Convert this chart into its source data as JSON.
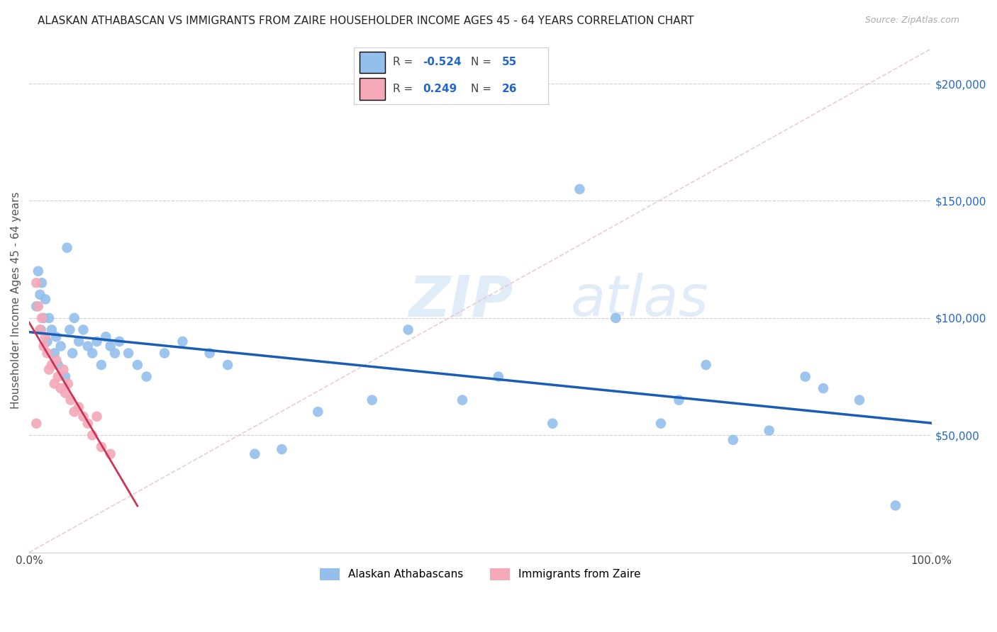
{
  "title": "ALASKAN ATHABASCAN VS IMMIGRANTS FROM ZAIRE HOUSEHOLDER INCOME AGES 45 - 64 YEARS CORRELATION CHART",
  "source": "Source: ZipAtlas.com",
  "ylabel": "Householder Income Ages 45 - 64 years",
  "xlim": [
    0,
    1.0
  ],
  "ylim": [
    0,
    215000
  ],
  "yticks_right": [
    50000,
    100000,
    150000,
    200000
  ],
  "ytick_labels_right": [
    "$50,000",
    "$100,000",
    "$150,000",
    "$200,000"
  ],
  "blue_color": "#92bfec",
  "pink_color": "#f4a8b8",
  "blue_line_color": "#1a5db5",
  "pink_line_color": "#cc3355",
  "diag_line_color": "#e8c0c8",
  "legend_blue_R": "-0.524",
  "legend_blue_N": "55",
  "legend_pink_R": "0.249",
  "legend_pink_N": "26",
  "legend_label_blue": "Alaskan Athabascans",
  "legend_label_pink": "Immigrants from Zaire",
  "blue_x": [
    0.008,
    0.01,
    0.012,
    0.013,
    0.014,
    0.016,
    0.018,
    0.02,
    0.022,
    0.025,
    0.028,
    0.03,
    0.032,
    0.035,
    0.04,
    0.042,
    0.045,
    0.048,
    0.05,
    0.055,
    0.06,
    0.065,
    0.07,
    0.075,
    0.08,
    0.085,
    0.09,
    0.095,
    0.1,
    0.11,
    0.12,
    0.13,
    0.15,
    0.17,
    0.2,
    0.22,
    0.25,
    0.28,
    0.32,
    0.38,
    0.42,
    0.48,
    0.52,
    0.58,
    0.61,
    0.65,
    0.7,
    0.72,
    0.75,
    0.78,
    0.82,
    0.86,
    0.88,
    0.92,
    0.96
  ],
  "blue_y": [
    105000,
    120000,
    110000,
    95000,
    115000,
    100000,
    108000,
    90000,
    100000,
    95000,
    85000,
    92000,
    80000,
    88000,
    75000,
    130000,
    95000,
    85000,
    100000,
    90000,
    95000,
    88000,
    85000,
    90000,
    80000,
    92000,
    88000,
    85000,
    90000,
    85000,
    80000,
    75000,
    85000,
    90000,
    85000,
    80000,
    42000,
    44000,
    60000,
    65000,
    95000,
    65000,
    75000,
    55000,
    155000,
    100000,
    55000,
    65000,
    80000,
    48000,
    52000,
    75000,
    70000,
    65000,
    20000
  ],
  "pink_x": [
    0.008,
    0.01,
    0.012,
    0.014,
    0.016,
    0.018,
    0.02,
    0.022,
    0.025,
    0.028,
    0.03,
    0.032,
    0.035,
    0.038,
    0.04,
    0.043,
    0.046,
    0.05,
    0.055,
    0.06,
    0.065,
    0.07,
    0.075,
    0.08,
    0.09,
    0.008
  ],
  "pink_y": [
    115000,
    105000,
    95000,
    100000,
    88000,
    92000,
    85000,
    78000,
    80000,
    72000,
    82000,
    75000,
    70000,
    78000,
    68000,
    72000,
    65000,
    60000,
    62000,
    58000,
    55000,
    50000,
    58000,
    45000,
    42000,
    55000
  ],
  "background_color": "#ffffff",
  "grid_color": "#d0d0d0"
}
